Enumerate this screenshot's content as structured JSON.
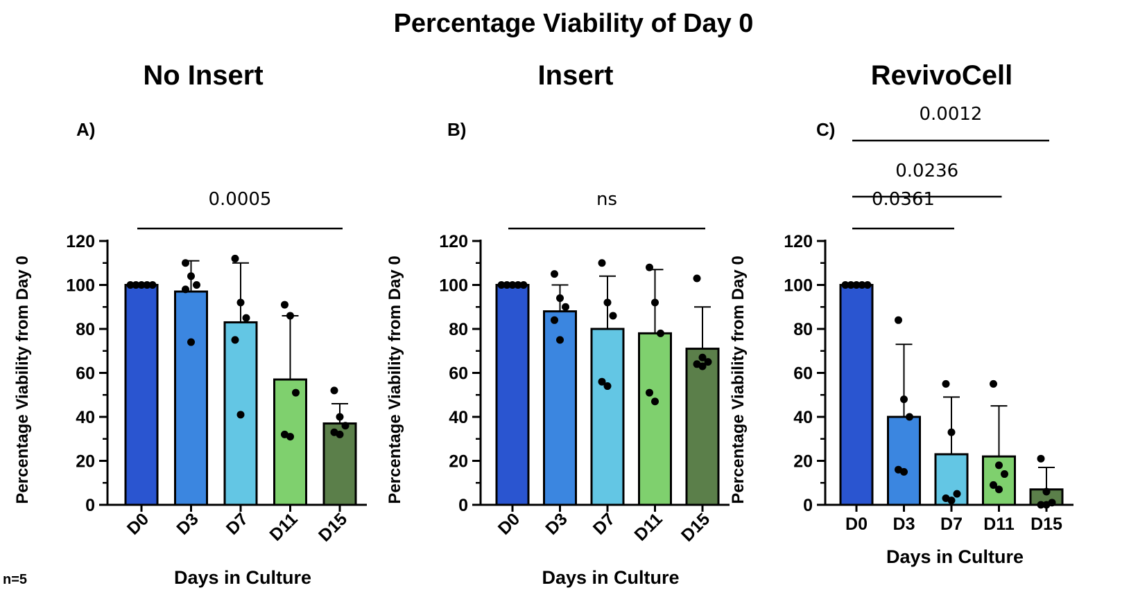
{
  "figure": {
    "title": "Percentage Viability of Day 0",
    "footnote": "n=5"
  },
  "colors": {
    "D0": "#2a55d0",
    "D3": "#3b86e0",
    "D7": "#63c6e4",
    "D11": "#7fd06e",
    "D15": "#5b7f4a"
  },
  "chart_data": [
    {
      "type": "bar",
      "panel_label": "A)",
      "title": "No Insert",
      "xlabel": "Days in Culture",
      "ylabel": "Percentage Viability from Day 0",
      "ylim": [
        0,
        120
      ],
      "yticks": [
        "0",
        "20",
        "40",
        "60",
        "80",
        "100",
        "120"
      ],
      "x_tick_rotation": "rotated",
      "categories": [
        "D0",
        "D3",
        "D7",
        "D11",
        "D15"
      ],
      "values": [
        100,
        97,
        83,
        57,
        37
      ],
      "error_bars": [
        0,
        14,
        27,
        29,
        9
      ],
      "points": [
        [
          100,
          100,
          100,
          100,
          100
        ],
        [
          110,
          104,
          100,
          98,
          74
        ],
        [
          112,
          92,
          85,
          75,
          41
        ],
        [
          91,
          86,
          51,
          32,
          31
        ],
        [
          52,
          40,
          36,
          33,
          32
        ]
      ],
      "significance": [
        {
          "label": "0.0005",
          "from": "D0",
          "to": "D15",
          "level": 1
        }
      ]
    },
    {
      "type": "bar",
      "panel_label": "B)",
      "title": "Insert",
      "xlabel": "Days in Culture",
      "ylabel": "Percentage Viability from Day 0",
      "ylim": [
        0,
        120
      ],
      "yticks": [
        "0",
        "20",
        "40",
        "60",
        "80",
        "100",
        "120"
      ],
      "x_tick_rotation": "rotated",
      "categories": [
        "D0",
        "D3",
        "D7",
        "D11",
        "D15"
      ],
      "values": [
        100,
        88,
        80,
        78,
        71
      ],
      "error_bars": [
        0,
        12,
        24,
        29,
        19
      ],
      "points": [
        [
          100,
          100,
          100,
          100,
          100
        ],
        [
          105,
          94,
          90,
          84,
          75
        ],
        [
          110,
          92,
          86,
          56,
          54
        ],
        [
          108,
          92,
          78,
          51,
          47
        ],
        [
          103,
          67,
          65,
          64,
          63
        ]
      ],
      "significance": [
        {
          "label": "ns",
          "from": "D0",
          "to": "D15",
          "level": 1
        }
      ]
    },
    {
      "type": "bar",
      "panel_label": "C)",
      "title": "RevivoCell",
      "xlabel": "Days in Culture",
      "ylabel": "Percentage Viability from Day 0",
      "ylim": [
        0,
        120
      ],
      "yticks": [
        "0",
        "20",
        "40",
        "60",
        "80",
        "100",
        "120"
      ],
      "x_tick_rotation": "horizontal",
      "categories": [
        "D0",
        "D3",
        "D7",
        "D11",
        "D15"
      ],
      "values": [
        100,
        40,
        23,
        22,
        7
      ],
      "error_bars": [
        0,
        33,
        26,
        23,
        10
      ],
      "points": [
        [
          100,
          100,
          100,
          100,
          100
        ],
        [
          84,
          48,
          40,
          16,
          15
        ],
        [
          55,
          33,
          5,
          3,
          2
        ],
        [
          55,
          18,
          14,
          9,
          7
        ],
        [
          21,
          6,
          1,
          0,
          0
        ]
      ],
      "significance": [
        {
          "label": "0.0361",
          "from": "D0",
          "to": "D7",
          "level": 1
        },
        {
          "label": "0.0236",
          "from": "D0",
          "to": "D11",
          "level": 2
        },
        {
          "label": "0.0012",
          "from": "D0",
          "to": "D15",
          "level": 3
        }
      ]
    }
  ]
}
